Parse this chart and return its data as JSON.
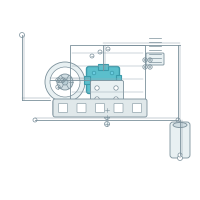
{
  "background_color": "#ffffff",
  "highlight_color": "#5bbfcc",
  "highlight_dark": "#3a9aaa",
  "line_color": "#7a8f9a",
  "line_color2": "#9aabb5",
  "fill_light": "#e8f0f2",
  "fill_mid": "#d0dde2",
  "fill_dark": "#b8cdd4"
}
